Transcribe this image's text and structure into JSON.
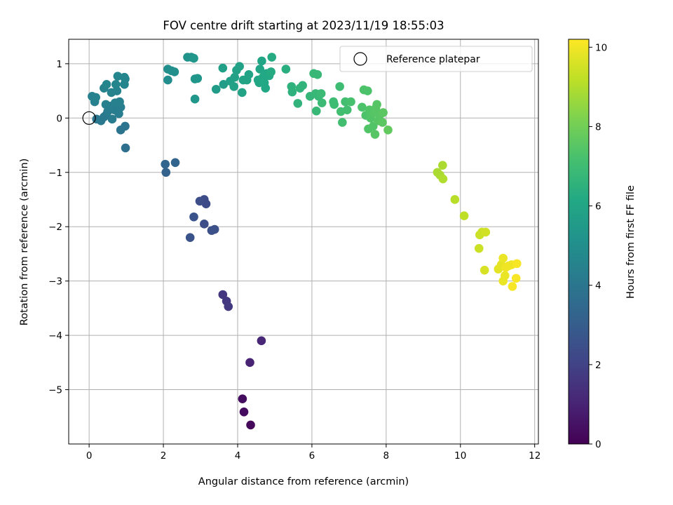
{
  "chart_data": {
    "type": "scatter",
    "title": "FOV centre drift starting at 2023/11/19 18:55:03",
    "xlabel": "Angular distance from reference (arcmin)",
    "ylabel": "Rotation from reference (arcmin)",
    "xlim": [
      -0.55,
      12.1
    ],
    "ylim": [
      -6.0,
      1.45
    ],
    "xticks": [
      0,
      2,
      4,
      6,
      8,
      10,
      12
    ],
    "yticks": [
      -5,
      -4,
      -3,
      -2,
      -1,
      0,
      1
    ],
    "grid": true,
    "legend": {
      "entries": [
        "Reference platepar"
      ],
      "placement": "top-right"
    },
    "reference_point": {
      "x": 0,
      "y": 0,
      "label": "Reference platepar"
    },
    "colorbar": {
      "label": "Hours from first FF file",
      "range": [
        0,
        10.2
      ],
      "ticks": [
        0,
        2,
        4,
        6,
        8,
        10
      ],
      "colormap": "viridis"
    },
    "points": [
      {
        "x": 4.35,
        "y": -5.65,
        "h": 0.2
      },
      {
        "x": 4.17,
        "y": -5.41,
        "h": 0.3
      },
      {
        "x": 4.13,
        "y": -5.17,
        "h": 0.35
      },
      {
        "x": 4.33,
        "y": -4.5,
        "h": 1.0
      },
      {
        "x": 4.64,
        "y": -4.1,
        "h": 1.1
      },
      {
        "x": 3.6,
        "y": -3.25,
        "h": 1.6
      },
      {
        "x": 3.7,
        "y": -3.37,
        "h": 1.65
      },
      {
        "x": 3.75,
        "y": -3.47,
        "h": 1.7
      },
      {
        "x": 2.72,
        "y": -2.2,
        "h": 2.6
      },
      {
        "x": 3.3,
        "y": -2.07,
        "h": 2.5
      },
      {
        "x": 3.38,
        "y": -2.05,
        "h": 2.5
      },
      {
        "x": 3.1,
        "y": -1.95,
        "h": 2.4
      },
      {
        "x": 2.82,
        "y": -1.82,
        "h": 2.6
      },
      {
        "x": 3.15,
        "y": -1.58,
        "h": 2.3
      },
      {
        "x": 3.1,
        "y": -1.5,
        "h": 2.3
      },
      {
        "x": 2.98,
        "y": -1.53,
        "h": 2.4
      },
      {
        "x": 2.07,
        "y": -1.0,
        "h": 3.2
      },
      {
        "x": 2.05,
        "y": -0.85,
        "h": 3.3
      },
      {
        "x": 2.32,
        "y": -0.82,
        "h": 3.3
      },
      {
        "x": 0.98,
        "y": -0.55,
        "h": 3.7
      },
      {
        "x": 0.85,
        "y": -0.22,
        "h": 3.9
      },
      {
        "x": 0.97,
        "y": -0.15,
        "h": 3.9
      },
      {
        "x": 0.2,
        "y": -0.02,
        "h": 4.0
      },
      {
        "x": 0.32,
        "y": -0.05,
        "h": 4.1
      },
      {
        "x": 0.45,
        "y": 0.05,
        "h": 4.1
      },
      {
        "x": 0.62,
        "y": -0.02,
        "h": 4.2
      },
      {
        "x": 0.4,
        "y": 0.02,
        "h": 4.1
      },
      {
        "x": 0.5,
        "y": 0.12,
        "h": 4.2
      },
      {
        "x": 0.68,
        "y": 0.15,
        "h": 4.2
      },
      {
        "x": 0.8,
        "y": 0.08,
        "h": 4.3
      },
      {
        "x": 0.55,
        "y": 0.22,
        "h": 4.3
      },
      {
        "x": 0.85,
        "y": 0.2,
        "h": 4.3
      },
      {
        "x": 0.7,
        "y": 0.28,
        "h": 4.4
      },
      {
        "x": 0.45,
        "y": 0.25,
        "h": 4.4
      },
      {
        "x": 0.82,
        "y": 0.3,
        "h": 4.4
      },
      {
        "x": 0.15,
        "y": 0.3,
        "h": 4.4
      },
      {
        "x": 0.08,
        "y": 0.4,
        "h": 4.4
      },
      {
        "x": 0.18,
        "y": 0.38,
        "h": 4.5
      },
      {
        "x": 0.6,
        "y": 0.47,
        "h": 4.5
      },
      {
        "x": 0.75,
        "y": 0.5,
        "h": 4.5
      },
      {
        "x": 0.4,
        "y": 0.55,
        "h": 4.5
      },
      {
        "x": 0.47,
        "y": 0.62,
        "h": 4.6
      },
      {
        "x": 0.72,
        "y": 0.62,
        "h": 4.6
      },
      {
        "x": 0.95,
        "y": 0.62,
        "h": 4.6
      },
      {
        "x": 0.97,
        "y": 0.72,
        "h": 4.6
      },
      {
        "x": 0.77,
        "y": 0.77,
        "h": 4.7
      },
      {
        "x": 0.95,
        "y": 0.75,
        "h": 4.7
      },
      {
        "x": 2.12,
        "y": 0.7,
        "h": 4.9
      },
      {
        "x": 2.12,
        "y": 0.9,
        "h": 5.0
      },
      {
        "x": 2.3,
        "y": 0.85,
        "h": 5.0
      },
      {
        "x": 2.22,
        "y": 0.87,
        "h": 5.0
      },
      {
        "x": 2.65,
        "y": 1.12,
        "h": 5.2
      },
      {
        "x": 2.75,
        "y": 1.12,
        "h": 5.2
      },
      {
        "x": 2.82,
        "y": 1.1,
        "h": 5.3
      },
      {
        "x": 2.85,
        "y": 0.72,
        "h": 5.3
      },
      {
        "x": 2.92,
        "y": 0.73,
        "h": 5.3
      },
      {
        "x": 2.85,
        "y": 0.35,
        "h": 5.3
      },
      {
        "x": 3.42,
        "y": 0.53,
        "h": 5.6
      },
      {
        "x": 3.62,
        "y": 0.62,
        "h": 5.6
      },
      {
        "x": 3.6,
        "y": 0.92,
        "h": 5.7
      },
      {
        "x": 3.8,
        "y": 0.68,
        "h": 5.7
      },
      {
        "x": 3.9,
        "y": 0.58,
        "h": 5.8
      },
      {
        "x": 3.92,
        "y": 0.75,
        "h": 5.8
      },
      {
        "x": 3.97,
        "y": 0.88,
        "h": 5.8
      },
      {
        "x": 4.05,
        "y": 0.95,
        "h": 5.8
      },
      {
        "x": 4.12,
        "y": 0.47,
        "h": 5.9
      },
      {
        "x": 4.15,
        "y": 0.7,
        "h": 5.9
      },
      {
        "x": 4.25,
        "y": 0.7,
        "h": 5.9
      },
      {
        "x": 4.3,
        "y": 0.8,
        "h": 5.9
      },
      {
        "x": 4.55,
        "y": 0.7,
        "h": 6.0
      },
      {
        "x": 4.58,
        "y": 0.65,
        "h": 6.0
      },
      {
        "x": 4.6,
        "y": 0.9,
        "h": 6.0
      },
      {
        "x": 4.65,
        "y": 1.05,
        "h": 6.0
      },
      {
        "x": 4.68,
        "y": 0.75,
        "h": 6.1
      },
      {
        "x": 4.72,
        "y": 0.65,
        "h": 6.1
      },
      {
        "x": 4.75,
        "y": 0.55,
        "h": 6.1
      },
      {
        "x": 4.78,
        "y": 0.82,
        "h": 6.1
      },
      {
        "x": 4.85,
        "y": 0.78,
        "h": 6.1
      },
      {
        "x": 4.9,
        "y": 0.85,
        "h": 6.2
      },
      {
        "x": 4.92,
        "y": 1.12,
        "h": 6.2
      },
      {
        "x": 5.3,
        "y": 0.9,
        "h": 6.4
      },
      {
        "x": 5.45,
        "y": 0.58,
        "h": 6.5
      },
      {
        "x": 5.47,
        "y": 0.48,
        "h": 6.5
      },
      {
        "x": 5.62,
        "y": 0.27,
        "h": 6.6
      },
      {
        "x": 5.68,
        "y": 0.55,
        "h": 6.6
      },
      {
        "x": 5.75,
        "y": 0.6,
        "h": 6.6
      },
      {
        "x": 5.95,
        "y": 0.4,
        "h": 6.7
      },
      {
        "x": 6.05,
        "y": 0.82,
        "h": 6.8
      },
      {
        "x": 6.15,
        "y": 0.8,
        "h": 6.8
      },
      {
        "x": 6.1,
        "y": 0.45,
        "h": 6.8
      },
      {
        "x": 6.18,
        "y": 0.4,
        "h": 6.8
      },
      {
        "x": 6.12,
        "y": 0.13,
        "h": 6.8
      },
      {
        "x": 6.25,
        "y": 0.45,
        "h": 6.9
      },
      {
        "x": 6.27,
        "y": 0.28,
        "h": 6.9
      },
      {
        "x": 6.58,
        "y": 0.3,
        "h": 7.0
      },
      {
        "x": 6.6,
        "y": 0.25,
        "h": 7.0
      },
      {
        "x": 6.75,
        "y": 0.58,
        "h": 7.0
      },
      {
        "x": 6.78,
        "y": 0.12,
        "h": 7.1
      },
      {
        "x": 6.82,
        "y": -0.08,
        "h": 7.1
      },
      {
        "x": 6.9,
        "y": 0.3,
        "h": 7.1
      },
      {
        "x": 6.95,
        "y": 0.15,
        "h": 7.1
      },
      {
        "x": 7.05,
        "y": 0.3,
        "h": 7.2
      },
      {
        "x": 7.35,
        "y": 0.2,
        "h": 7.3
      },
      {
        "x": 7.4,
        "y": 0.52,
        "h": 7.3
      },
      {
        "x": 7.45,
        "y": 0.05,
        "h": 7.3
      },
      {
        "x": 7.5,
        "y": 0.5,
        "h": 7.3
      },
      {
        "x": 7.55,
        "y": 0.15,
        "h": 7.4
      },
      {
        "x": 7.58,
        "y": 0.0,
        "h": 7.4
      },
      {
        "x": 7.52,
        "y": -0.2,
        "h": 7.4
      },
      {
        "x": 7.65,
        "y": -0.15,
        "h": 7.4
      },
      {
        "x": 7.68,
        "y": 0.1,
        "h": 7.5
      },
      {
        "x": 7.7,
        "y": -0.3,
        "h": 7.5
      },
      {
        "x": 7.72,
        "y": 0.18,
        "h": 7.5
      },
      {
        "x": 7.75,
        "y": 0.25,
        "h": 7.5
      },
      {
        "x": 7.78,
        "y": -0.05,
        "h": 7.5
      },
      {
        "x": 7.82,
        "y": 0.05,
        "h": 7.5
      },
      {
        "x": 7.9,
        "y": -0.08,
        "h": 7.6
      },
      {
        "x": 7.92,
        "y": 0.1,
        "h": 7.6
      },
      {
        "x": 8.05,
        "y": -0.22,
        "h": 7.7
      },
      {
        "x": 9.38,
        "y": -1.0,
        "h": 8.9
      },
      {
        "x": 9.45,
        "y": -1.05,
        "h": 8.9
      },
      {
        "x": 9.52,
        "y": -0.87,
        "h": 8.9
      },
      {
        "x": 9.53,
        "y": -1.12,
        "h": 9.0
      },
      {
        "x": 9.85,
        "y": -1.5,
        "h": 9.1
      },
      {
        "x": 10.1,
        "y": -1.8,
        "h": 9.2
      },
      {
        "x": 10.5,
        "y": -2.4,
        "h": 9.4
      },
      {
        "x": 10.52,
        "y": -2.15,
        "h": 9.4
      },
      {
        "x": 10.58,
        "y": -2.1,
        "h": 9.4
      },
      {
        "x": 10.68,
        "y": -2.1,
        "h": 9.5
      },
      {
        "x": 10.65,
        "y": -2.8,
        "h": 9.6
      },
      {
        "x": 11.02,
        "y": -2.78,
        "h": 9.8
      },
      {
        "x": 11.1,
        "y": -2.7,
        "h": 9.8
      },
      {
        "x": 11.15,
        "y": -2.58,
        "h": 9.9
      },
      {
        "x": 11.15,
        "y": -3.0,
        "h": 9.9
      },
      {
        "x": 11.2,
        "y": -2.9,
        "h": 9.9
      },
      {
        "x": 11.22,
        "y": -2.75,
        "h": 10.0
      },
      {
        "x": 11.3,
        "y": -2.72,
        "h": 10.0
      },
      {
        "x": 11.38,
        "y": -2.7,
        "h": 10.0
      },
      {
        "x": 11.4,
        "y": -3.1,
        "h": 10.1
      },
      {
        "x": 11.5,
        "y": -2.95,
        "h": 10.1
      },
      {
        "x": 11.52,
        "y": -2.68,
        "h": 10.1
      }
    ]
  }
}
